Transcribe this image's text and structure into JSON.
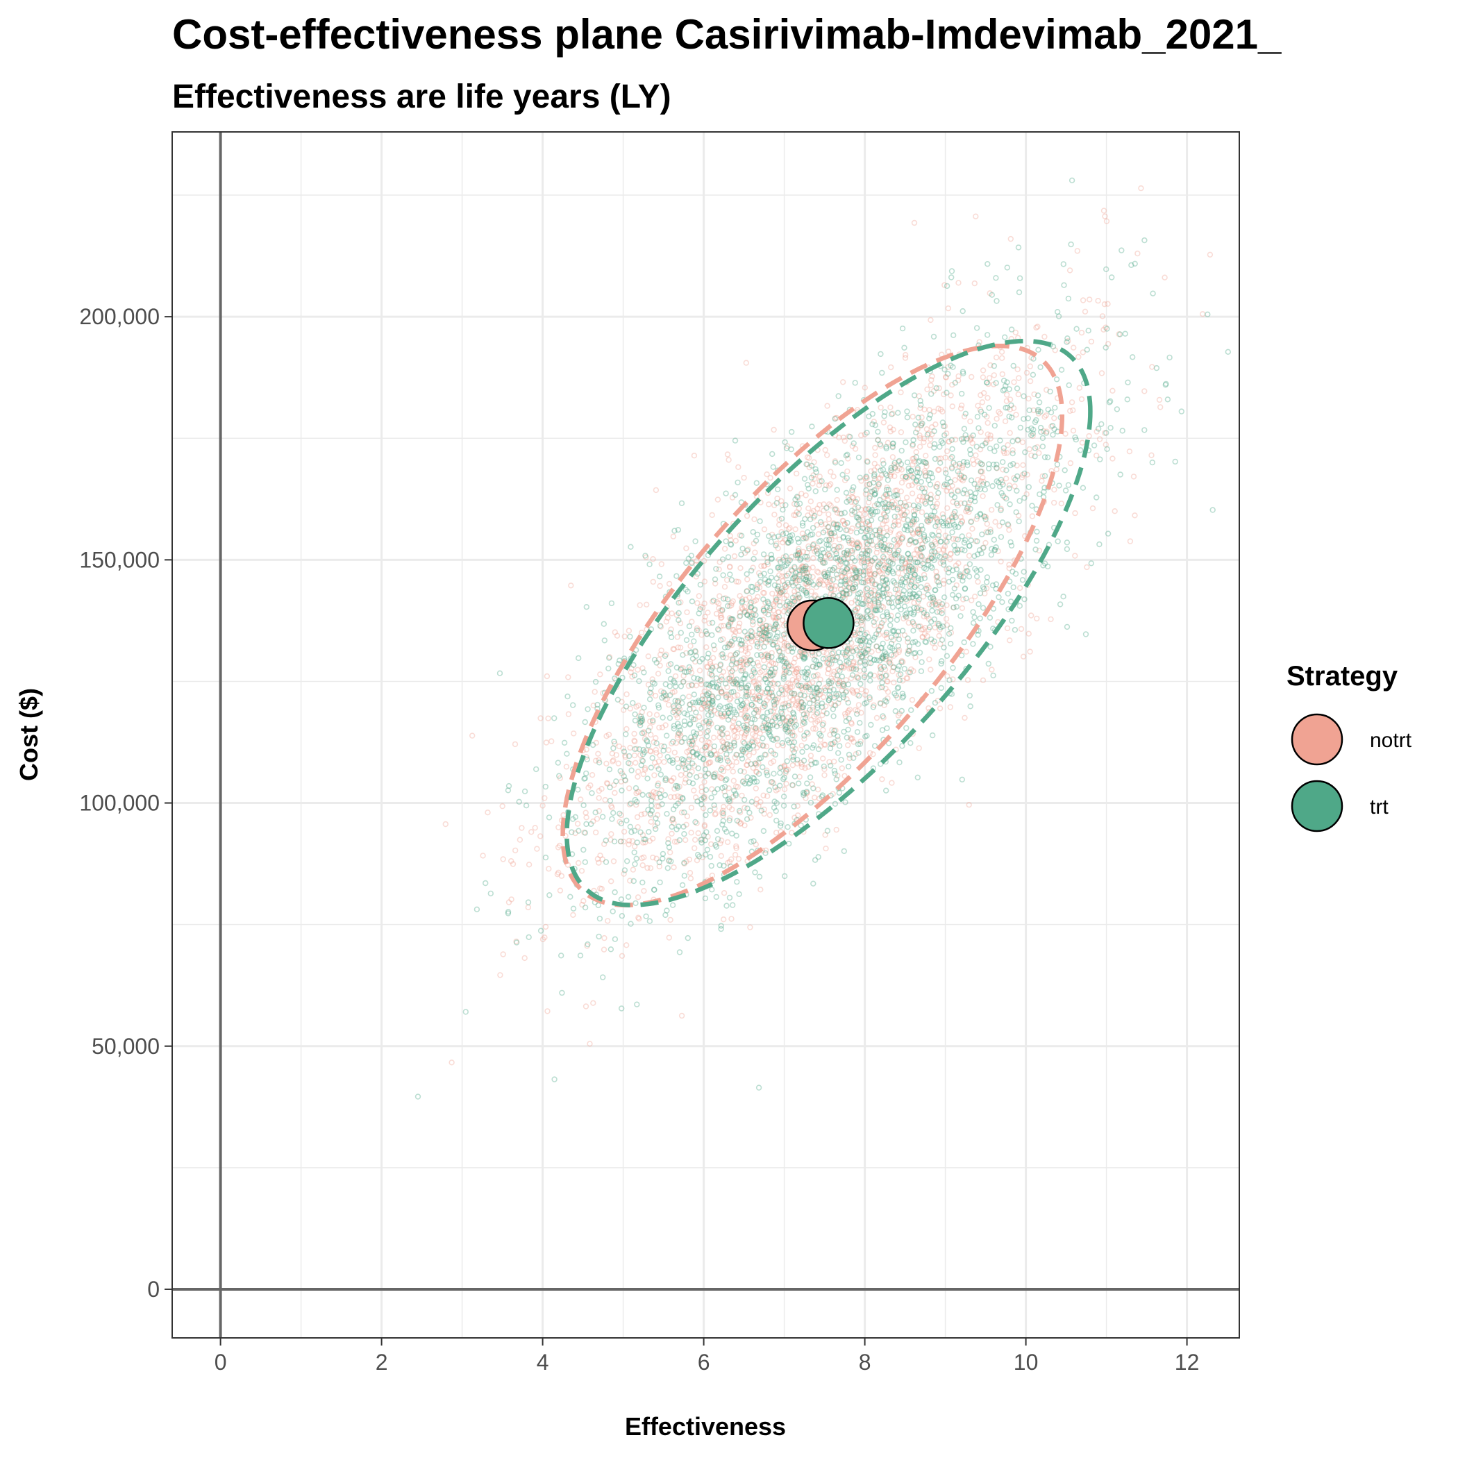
{
  "chart_data": {
    "type": "scatter",
    "title": "Cost-effectiveness plane Casirivimab-Imdevimab_2021_",
    "subtitle": "Effectiveness are life years (LY)",
    "xlabel": "Effectiveness",
    "ylabel": "Cost ($)",
    "xlim": [
      -0.6,
      12.65
    ],
    "ylim": [
      -10000,
      238000
    ],
    "x_ticks": [
      0,
      2,
      4,
      6,
      8,
      10,
      12
    ],
    "x_tick_labels": [
      "0",
      "2",
      "4",
      "6",
      "8",
      "10",
      "12"
    ],
    "y_ticks": [
      0,
      50000,
      100000,
      150000,
      200000
    ],
    "y_tick_labels": [
      "0",
      "50,000",
      "100,000",
      "150,000",
      "200,000"
    ],
    "grid": true,
    "reference_lines": {
      "x": 0,
      "y": 0
    },
    "legend": {
      "title": "Strategy",
      "position": "right",
      "entries": [
        "notrt",
        "trt"
      ]
    },
    "series": [
      {
        "name": "notrt",
        "color": "#f0a393",
        "mean": {
          "x": 7.35,
          "y": 136500
        },
        "cloud": {
          "mean_x": 7.35,
          "mean_y": 136500,
          "sd_x": 1.45,
          "sd_y": 26000,
          "corr": 0.75,
          "n": 2500
        },
        "ellipse_95": {
          "center": [
            7.35,
            136500
          ],
          "semi_axes_data": {
            "x": 3.1,
            "y": 57500
          },
          "corr": 0.75
        }
      },
      {
        "name": "trt",
        "color": "#4fa888",
        "mean": {
          "x": 7.55,
          "y": 137000
        },
        "cloud": {
          "mean_x": 7.55,
          "mean_y": 137000,
          "sd_x": 1.5,
          "sd_y": 26500,
          "corr": 0.75,
          "n": 2500
        },
        "ellipse_95": {
          "center": [
            7.55,
            137000
          ],
          "semi_axes_data": {
            "x": 3.25,
            "y": 58000
          },
          "corr": 0.75
        }
      }
    ]
  }
}
